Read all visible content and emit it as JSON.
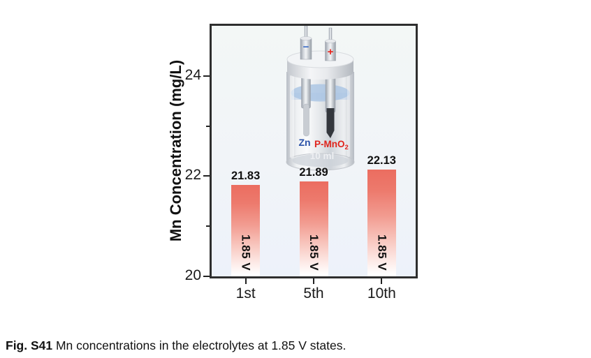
{
  "colors": {
    "bar_top": "#eb6d60",
    "axis": "#222222",
    "plot_border": "#2e2e2e",
    "plot_bg_top": "#f3f7f6",
    "plot_bg_bottom": "#edf2fa",
    "zn_label": "#2b52a8",
    "pmno2_label": "#e0241c",
    "minus_sign": "#3a6bc4",
    "plus_sign": "#e8211a",
    "liquid": "#a9c4e4"
  },
  "chart_data": {
    "type": "bar",
    "categories": [
      "1st",
      "5th",
      "10th"
    ],
    "values": [
      21.83,
      21.89,
      22.13
    ],
    "bar_labels": [
      "21.83",
      "21.89",
      "22.13"
    ],
    "bar_annotations": [
      "1.85 V",
      "1.85 V",
      "1.85 V"
    ],
    "title": "",
    "xlabel": "",
    "ylabel": "Mn Concentration (mg/L)",
    "ylim": [
      20,
      25
    ],
    "yticks_major": [
      20,
      22,
      24
    ],
    "yticks_minor": [
      21,
      23
    ],
    "grid": false,
    "legend": null
  },
  "inset": {
    "negative_sign": "−",
    "positive_sign": "+",
    "anode_label": "Zn",
    "cathode_label": "P-MnO",
    "cathode_label_sub": "2",
    "volume_label": "10 ml"
  },
  "caption": {
    "prefix": "Fig. S41",
    "text": " Mn concentrations in the electrolytes at 1.85 V states."
  }
}
